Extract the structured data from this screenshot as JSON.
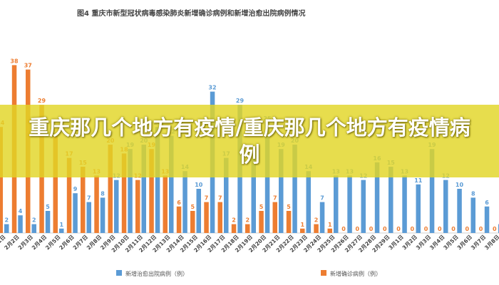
{
  "overlay": {
    "text": "重庆那几个地方有疫情/重庆那几个地方有疫情病例"
  },
  "colors": {
    "recovered": "#5b9bd5",
    "confirmed": "#ed7d31",
    "banner": "#e2d626"
  },
  "chart_data": {
    "type": "bar",
    "title": "图4   重庆市新型冠状病毒感染肺炎新增确诊病例和新增治愈出院病例情况",
    "categories": [
      "2月1日",
      "2月2日",
      "2月3日",
      "2月4日",
      "2月5日",
      "2月6日",
      "2月7日",
      "2月8日",
      "2月9日",
      "2月10日",
      "2月11日",
      "2月12日",
      "2月13日",
      "2月14日",
      "2月15日",
      "2月16日",
      "2月17日",
      "2月18日",
      "2月19日",
      "2月20日",
      "2月21日",
      "2月22日",
      "2月23日",
      "2月24日",
      "2月25日",
      "2月26日",
      "2月27日",
      "2月28日",
      "2月29日",
      "3月1日",
      "3月2日",
      "3月3日",
      "3月4日",
      "3月5日",
      "3月6日",
      "3月7日",
      "3月8日"
    ],
    "series": [
      {
        "name": "新增治愈出院病例（例）",
        "values": [
          2,
          4,
          2,
          5,
          1,
          9,
          7,
          8,
          12,
          19,
          20,
          24,
          22,
          14,
          10,
          32,
          17,
          29,
          18,
          25,
          19,
          20,
          14,
          7,
          13,
          13,
          12,
          16,
          15,
          13,
          11,
          19,
          12,
          10,
          8,
          6,
          2
        ]
      },
      {
        "name": "新增确诊病例（例）",
        "values": [
          24,
          38,
          37,
          29,
          22,
          17,
          15,
          13,
          20,
          18,
          12,
          19,
          13,
          6,
          5,
          7,
          7,
          2,
          2,
          5,
          7,
          5,
          1,
          2,
          1,
          0,
          0,
          0,
          0,
          0,
          0,
          0,
          0,
          0,
          0,
          0,
          0
        ]
      }
    ],
    "ylim": [
      0,
      40
    ],
    "legend": "bottom"
  }
}
